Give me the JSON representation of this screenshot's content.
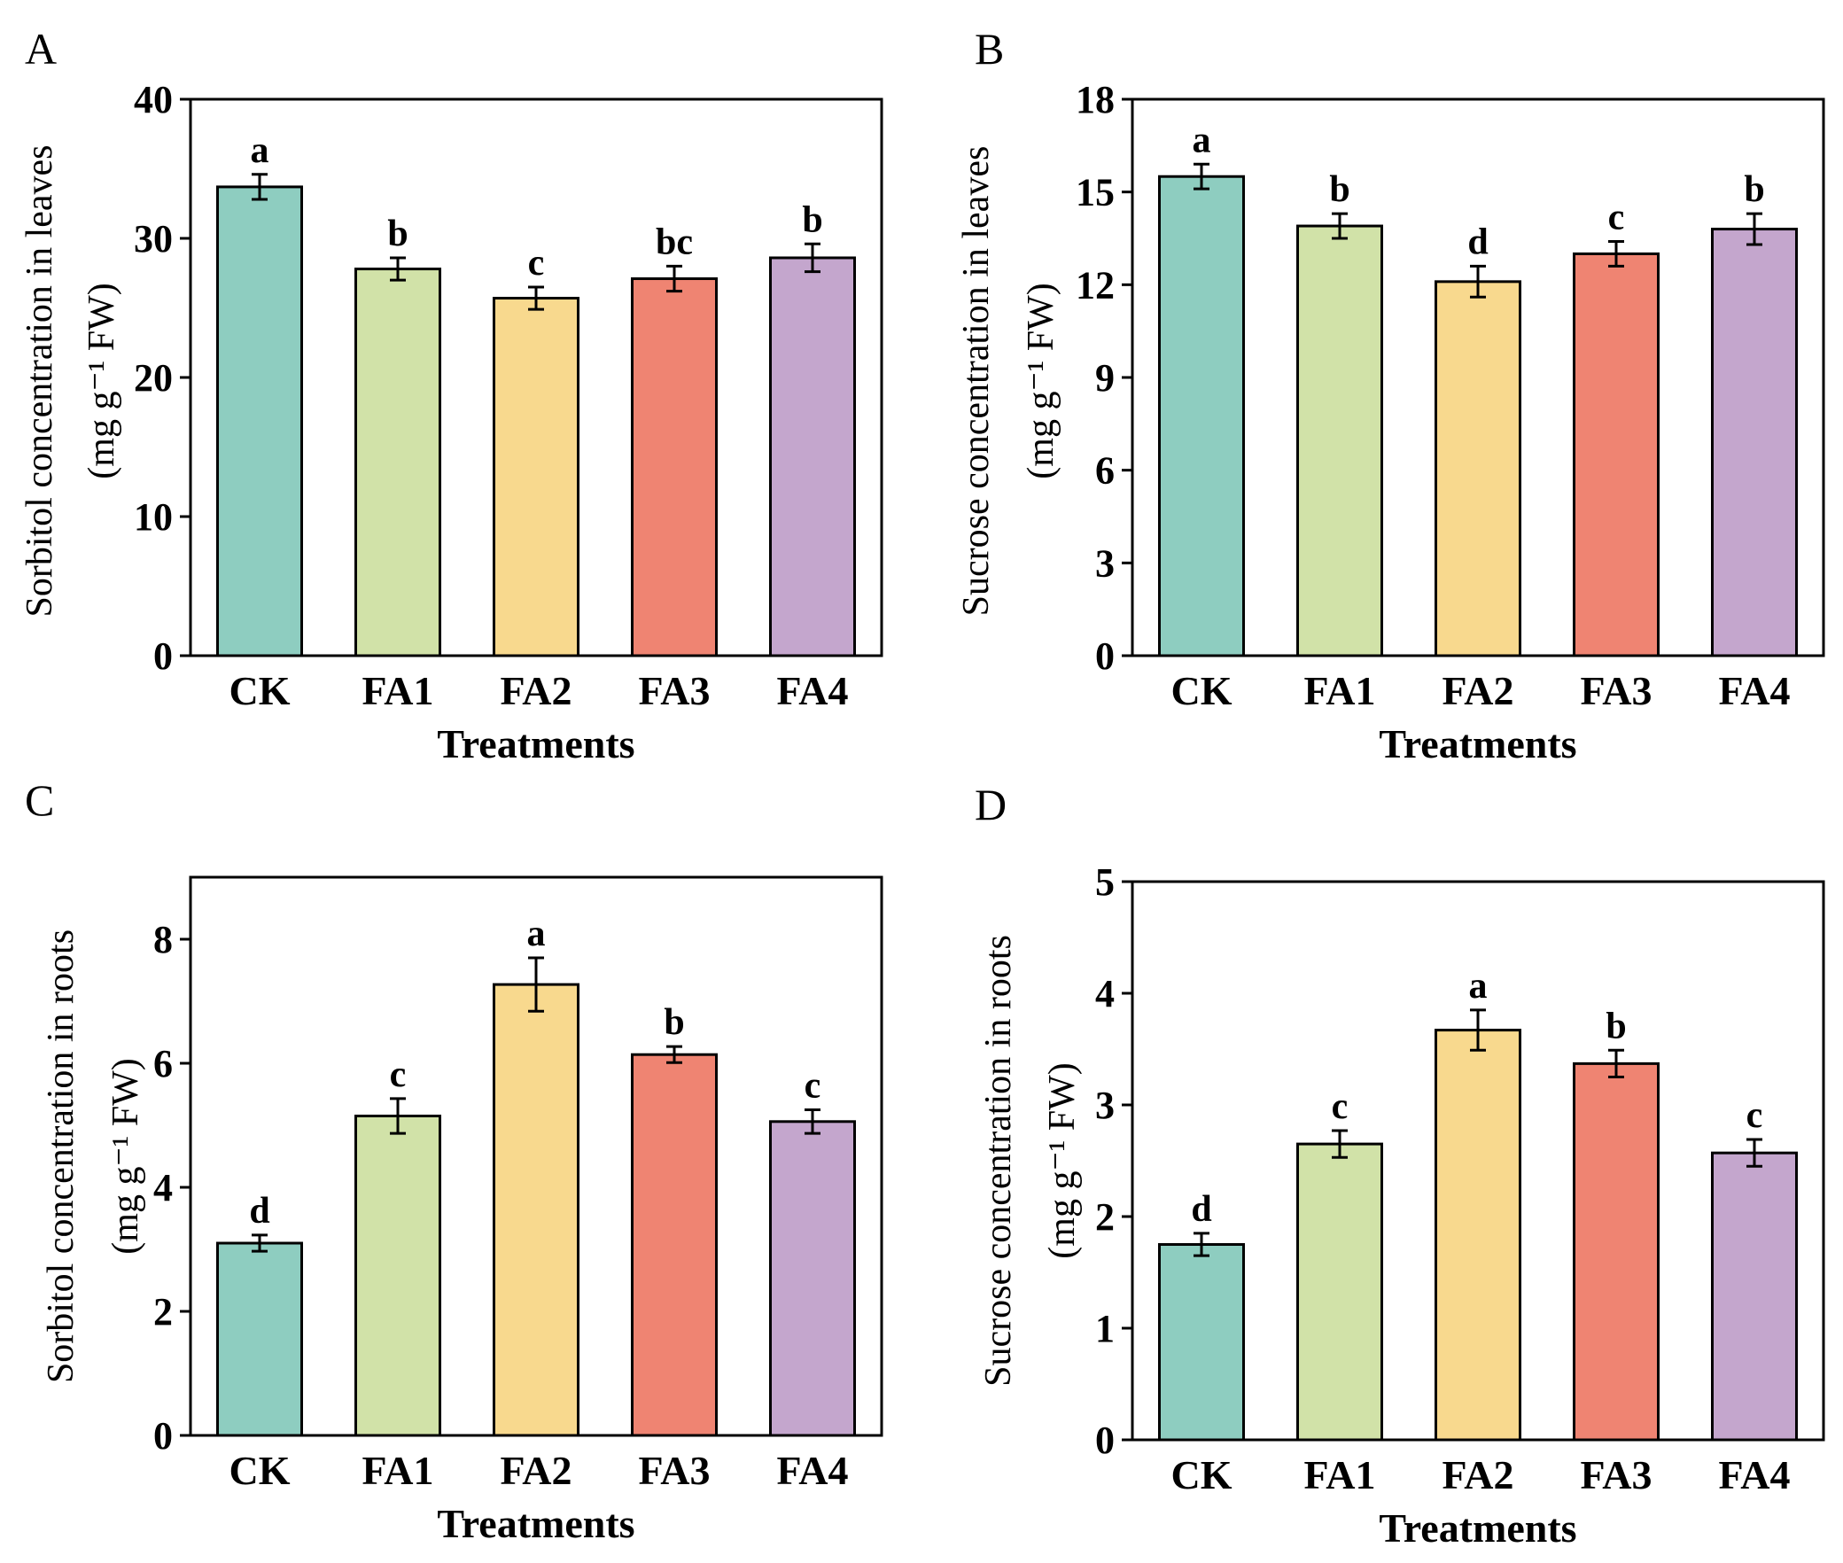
{
  "chart_data": [
    {
      "panel": "A",
      "type": "bar",
      "ylabel_line1": "Sorbitol concentration in leaves",
      "ylabel_line2": "(mg g⁻¹ FW)",
      "xlabel": "Treatments",
      "ylim": [
        0,
        40
      ],
      "yticks": [
        0,
        10,
        20,
        30,
        40
      ],
      "categories": [
        "CK",
        "FA1",
        "FA2",
        "FA3",
        "FA4"
      ],
      "values": [
        33.7,
        27.8,
        25.7,
        27.1,
        28.6
      ],
      "errors": [
        0.9,
        0.8,
        0.8,
        0.9,
        1.0
      ],
      "letters": [
        "a",
        "b",
        "c",
        "bc",
        "b"
      ]
    },
    {
      "panel": "B",
      "type": "bar",
      "ylabel_line1": "Sucrose concentration in leaves",
      "ylabel_line2": "(mg g⁻¹ FW)",
      "xlabel": "Treatments",
      "ylim": [
        0,
        18
      ],
      "yticks": [
        0,
        3,
        6,
        9,
        12,
        15,
        18
      ],
      "categories": [
        "CK",
        "FA1",
        "FA2",
        "FA3",
        "FA4"
      ],
      "values": [
        15.5,
        13.9,
        12.1,
        13.0,
        13.8
      ],
      "errors": [
        0.4,
        0.4,
        0.5,
        0.4,
        0.5
      ],
      "letters": [
        "a",
        "b",
        "d",
        "c",
        "b"
      ]
    },
    {
      "panel": "C",
      "type": "bar",
      "ylabel_line1": "Sorbitol concentration in roots",
      "ylabel_line2": "(mg g⁻¹ FW)",
      "xlabel": "Treatments",
      "ylim": [
        0,
        9
      ],
      "yticks": [
        0,
        2,
        4,
        6,
        8
      ],
      "categories": [
        "CK",
        "FA1",
        "FA2",
        "FA3",
        "FA4"
      ],
      "values": [
        3.1,
        5.15,
        7.27,
        6.14,
        5.06
      ],
      "errors": [
        0.13,
        0.28,
        0.43,
        0.13,
        0.19
      ],
      "letters": [
        "d",
        "c",
        "a",
        "b",
        "c"
      ]
    },
    {
      "panel": "D",
      "type": "bar",
      "ylabel_line1": "Sucrose concentration in roots",
      "ylabel_line2": "(mg g⁻¹ FW)",
      "xlabel": "Treatments",
      "ylim": [
        0,
        5
      ],
      "yticks": [
        0,
        1,
        2,
        3,
        4,
        5
      ],
      "categories": [
        "CK",
        "FA1",
        "FA2",
        "FA3",
        "FA4"
      ],
      "values": [
        1.75,
        2.65,
        3.67,
        3.37,
        2.57
      ],
      "errors": [
        0.1,
        0.12,
        0.18,
        0.12,
        0.12
      ],
      "letters": [
        "d",
        "c",
        "a",
        "b",
        "c"
      ]
    }
  ],
  "colors": [
    "#8ecdc0",
    "#d1e2a8",
    "#f8d98e",
    "#ef8472",
    "#c4a6cd"
  ]
}
